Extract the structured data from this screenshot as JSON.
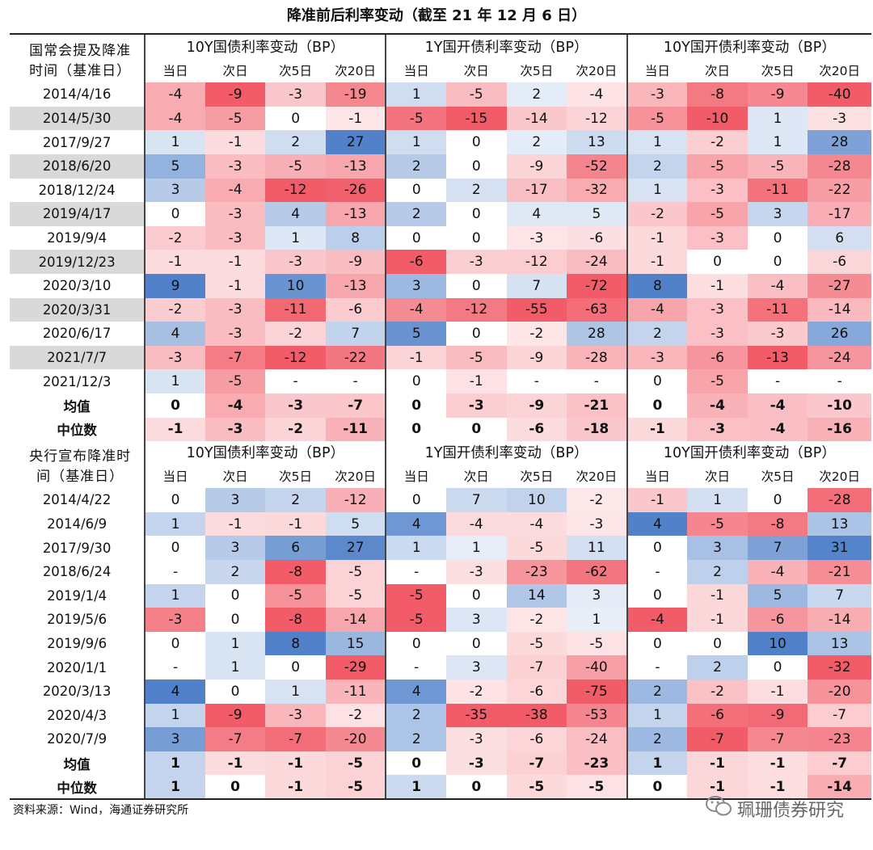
{
  "title": "降准前后利率变动（截至 21 年 12 月 6 日）",
  "sections": [
    {
      "row_header": [
        "国常会提及降准",
        "时间（基准日）"
      ],
      "groups": [
        "10Y国债利率变动（BP）",
        "1Y国开债利率变动（BP）",
        "10Y国开债利率变动（BP）"
      ],
      "subcols": [
        "当日",
        "次日",
        "次5日",
        "次20日"
      ],
      "rows": [
        {
          "label": "2014/4/16",
          "shade": "white",
          "v": [
            "-4",
            "-9",
            "-3",
            "-19",
            "1",
            "-5",
            "2",
            "-4",
            "-3",
            "-8",
            "-9",
            "-40"
          ]
        },
        {
          "label": "2014/5/30",
          "shade": "grey",
          "v": [
            "-4",
            "-5",
            "0",
            "-1",
            "-5",
            "-15",
            "-14",
            "-12",
            "-5",
            "-10",
            "1",
            "-3"
          ]
        },
        {
          "label": "2017/9/27",
          "shade": "white",
          "v": [
            "1",
            "-1",
            "2",
            "27",
            "1",
            "0",
            "2",
            "13",
            "1",
            "-2",
            "1",
            "28"
          ]
        },
        {
          "label": "2018/6/20",
          "shade": "grey",
          "v": [
            "5",
            "-3",
            "-5",
            "-13",
            "2",
            "0",
            "-9",
            "-52",
            "2",
            "-5",
            "-5",
            "-28"
          ]
        },
        {
          "label": "2018/12/24",
          "shade": "white",
          "v": [
            "3",
            "-4",
            "-12",
            "-26",
            "0",
            "2",
            "-17",
            "-32",
            "1",
            "-3",
            "-11",
            "-22"
          ]
        },
        {
          "label": "2019/4/17",
          "shade": "grey",
          "v": [
            "0",
            "-3",
            "4",
            "-13",
            "2",
            "0",
            "4",
            "5",
            "-2",
            "-5",
            "3",
            "-17"
          ]
        },
        {
          "label": "2019/9/4",
          "shade": "white",
          "v": [
            "-2",
            "-3",
            "1",
            "8",
            "0",
            "0",
            "-3",
            "-6",
            "-1",
            "-3",
            "0",
            "6"
          ]
        },
        {
          "label": "2019/12/23",
          "shade": "grey",
          "v": [
            "-1",
            "-1",
            "-3",
            "-9",
            "-6",
            "-3",
            "-12",
            "-24",
            "-1",
            "0",
            "0",
            "-6"
          ]
        },
        {
          "label": "2020/3/10",
          "shade": "white",
          "v": [
            "9",
            "-1",
            "10",
            "-13",
            "3",
            "0",
            "7",
            "-72",
            "8",
            "-1",
            "-4",
            "-27"
          ]
        },
        {
          "label": "2020/3/31",
          "shade": "grey",
          "v": [
            "-2",
            "-3",
            "-11",
            "-6",
            "-4",
            "-12",
            "-55",
            "-63",
            "-4",
            "-3",
            "-11",
            "-14"
          ]
        },
        {
          "label": "2020/6/17",
          "shade": "white",
          "v": [
            "4",
            "-3",
            "-2",
            "7",
            "5",
            "0",
            "-2",
            "28",
            "2",
            "-3",
            "-3",
            "26"
          ]
        },
        {
          "label": "2021/7/7",
          "shade": "grey",
          "v": [
            "-3",
            "-7",
            "-12",
            "-22",
            "-1",
            "-5",
            "-9",
            "-28",
            "-3",
            "-6",
            "-13",
            "-24"
          ]
        },
        {
          "label": "2021/12/3",
          "shade": "white",
          "v": [
            "1",
            "-5",
            "-",
            "-",
            "0",
            "-1",
            "-",
            "-",
            "0",
            "-5",
            "-",
            "-"
          ]
        }
      ],
      "summary": [
        {
          "label": "均值",
          "v": [
            "0",
            "-4",
            "-3",
            "-7",
            "0",
            "-3",
            "-9",
            "-21",
            "0",
            "-4",
            "-4",
            "-10"
          ]
        },
        {
          "label": "中位数",
          "v": [
            "-1",
            "-3",
            "-2",
            "-11",
            "0",
            "0",
            "-6",
            "-18",
            "-1",
            "-3",
            "-4",
            "-16"
          ]
        }
      ]
    },
    {
      "row_header": [
        "央行宣布降准时",
        "间（基准日）"
      ],
      "groups": [
        "10Y国债利率变动（BP）",
        "1Y国开债利率变动（BP）",
        "10Y国开债利率变动（BP）"
      ],
      "subcols": [
        "当日",
        "次日",
        "次5日",
        "次20日"
      ],
      "rows": [
        {
          "label": "2014/4/22",
          "shade": "white",
          "v": [
            "0",
            "3",
            "2",
            "-12",
            "0",
            "7",
            "10",
            "-2",
            "-1",
            "1",
            "0",
            "-28"
          ]
        },
        {
          "label": "2014/6/9",
          "shade": "white",
          "v": [
            "1",
            "-1",
            "-1",
            "5",
            "4",
            "-4",
            "-4",
            "-3",
            "4",
            "-5",
            "-8",
            "13"
          ]
        },
        {
          "label": "2017/9/30",
          "shade": "white",
          "v": [
            "0",
            "3",
            "6",
            "27",
            "1",
            "1",
            "-5",
            "11",
            "0",
            "3",
            "7",
            "31"
          ]
        },
        {
          "label": "2018/6/24",
          "shade": "white",
          "v": [
            "-",
            "2",
            "-8",
            "-5",
            "-",
            "-3",
            "-23",
            "-62",
            "-",
            "2",
            "-4",
            "-21"
          ]
        },
        {
          "label": "2019/1/4",
          "shade": "white",
          "v": [
            "1",
            "0",
            "-5",
            "-5",
            "-5",
            "0",
            "14",
            "3",
            "0",
            "-1",
            "5",
            "7"
          ]
        },
        {
          "label": "2019/5/6",
          "shade": "white",
          "v": [
            "-3",
            "0",
            "-8",
            "-14",
            "-5",
            "3",
            "-2",
            "1",
            "-4",
            "-1",
            "-6",
            "-14"
          ]
        },
        {
          "label": "2019/9/6",
          "shade": "white",
          "v": [
            "0",
            "1",
            "8",
            "15",
            "0",
            "0",
            "-5",
            "-5",
            "0",
            "0",
            "10",
            "13"
          ]
        },
        {
          "label": "2020/1/1",
          "shade": "white",
          "v": [
            "-",
            "1",
            "0",
            "-29",
            "-",
            "3",
            "-7",
            "-40",
            "-",
            "2",
            "0",
            "-32"
          ]
        },
        {
          "label": "2020/3/13",
          "shade": "white",
          "v": [
            "4",
            "0",
            "1",
            "-11",
            "4",
            "-2",
            "-6",
            "-75",
            "2",
            "-2",
            "-1",
            "-20"
          ]
        },
        {
          "label": "2020/4/3",
          "shade": "white",
          "v": [
            "1",
            "-9",
            "-3",
            "-2",
            "2",
            "-35",
            "-38",
            "-53",
            "1",
            "-6",
            "-9",
            "-7"
          ]
        },
        {
          "label": "2020/7/9",
          "shade": "white",
          "v": [
            "3",
            "-7",
            "-7",
            "-20",
            "2",
            "-3",
            "-6",
            "-24",
            "2",
            "-7",
            "-7",
            "-23"
          ]
        }
      ],
      "summary": [
        {
          "label": "均值",
          "v": [
            "1",
            "-1",
            "-1",
            "-5",
            "0",
            "-3",
            "-7",
            "-23",
            "1",
            "-1",
            "-1",
            "-7"
          ]
        },
        {
          "label": "中位数",
          "v": [
            "1",
            "0",
            "-1",
            "-5",
            "1",
            "0",
            "-5",
            "-5",
            "0",
            "-1",
            "-1",
            "-14"
          ]
        }
      ]
    }
  ],
  "footer": "资料来源：Wind，海通证券研究所",
  "watermark": "珮珊债券研究",
  "colors": {
    "positive": "#5b8bd0",
    "negative": "#f1646e",
    "grey_band": "#d9d9d9"
  }
}
